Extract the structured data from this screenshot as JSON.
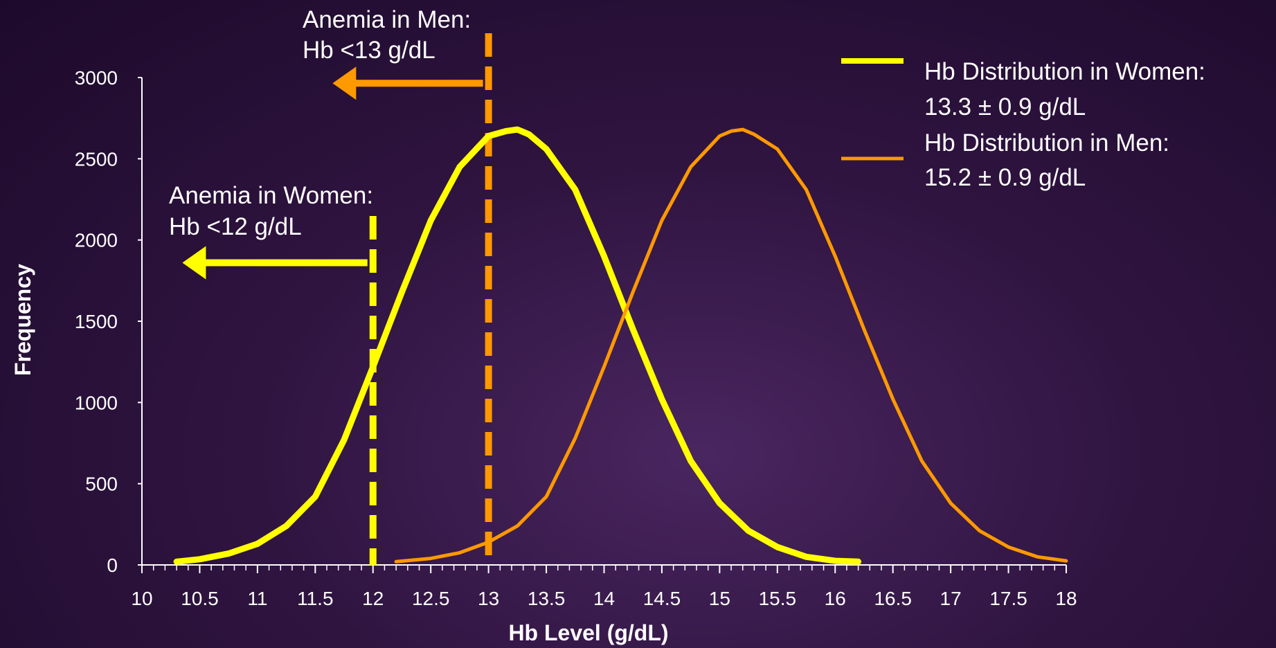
{
  "colors": {
    "women": "#ffff00",
    "men": "#ff9900",
    "text": "#ffffff",
    "axis": "#ffffff"
  },
  "chart_data": {
    "type": "line",
    "xlabel": "Hb Level (g/dL)",
    "ylabel": "Frequency",
    "xlim": [
      10,
      18
    ],
    "ylim": [
      0,
      3000
    ],
    "xticks": [
      "10",
      "10.5",
      "11",
      "11.5",
      "12",
      "12.5",
      "13",
      "13.5",
      "14",
      "14.5",
      "15",
      "15.5",
      "16",
      "16.5",
      "17",
      "17.5",
      "18"
    ],
    "yticks": [
      "0",
      "500",
      "1000",
      "1500",
      "2000",
      "2500",
      "3000"
    ],
    "grid": false,
    "legend_position": "top-right",
    "series": [
      {
        "name": "Hb Distribution in Women:",
        "detail": "13.3 ± 0.9 g/dL",
        "color": "#ffff00",
        "x": [
          10.3,
          10.5,
          10.75,
          11.0,
          11.25,
          11.5,
          11.75,
          12.0,
          12.25,
          12.5,
          12.75,
          13.0,
          13.15,
          13.25,
          13.35,
          13.5,
          13.75,
          14.0,
          14.25,
          14.5,
          14.75,
          15.0,
          15.25,
          15.5,
          15.75,
          16.0,
          16.2
        ],
        "y": [
          20,
          35,
          70,
          130,
          240,
          420,
          770,
          1220,
          1680,
          2120,
          2450,
          2640,
          2670,
          2680,
          2650,
          2560,
          2310,
          1900,
          1450,
          1020,
          640,
          380,
          210,
          110,
          50,
          25,
          20
        ]
      },
      {
        "name": "Hb Distribution in Men:",
        "detail": "15.2 ± 0.9 g/dL",
        "color": "#ff9900",
        "x": [
          12.2,
          12.5,
          12.75,
          13.0,
          13.25,
          13.5,
          13.75,
          14.0,
          14.25,
          14.5,
          14.75,
          15.0,
          15.1,
          15.2,
          15.3,
          15.5,
          15.75,
          16.0,
          16.25,
          16.5,
          16.75,
          17.0,
          17.25,
          17.5,
          17.75,
          18.0
        ],
        "y": [
          20,
          40,
          75,
          140,
          240,
          420,
          780,
          1220,
          1680,
          2120,
          2450,
          2640,
          2670,
          2680,
          2650,
          2560,
          2310,
          1900,
          1450,
          1020,
          640,
          380,
          210,
          110,
          50,
          25
        ]
      }
    ],
    "thresholds": [
      {
        "x": 13,
        "color": "#ff9900",
        "label_line1": "Anemia in Men:",
        "label_line2": "Hb <13 g/dL",
        "arrow_to_x": 11.65,
        "arrow_y": 2965
      },
      {
        "x": 12,
        "color": "#ffff00",
        "label_line1": "Anemia in Women:",
        "label_line2": "Hb <12 g/dL",
        "arrow_to_x": 10.35,
        "arrow_y": 1860
      }
    ]
  }
}
